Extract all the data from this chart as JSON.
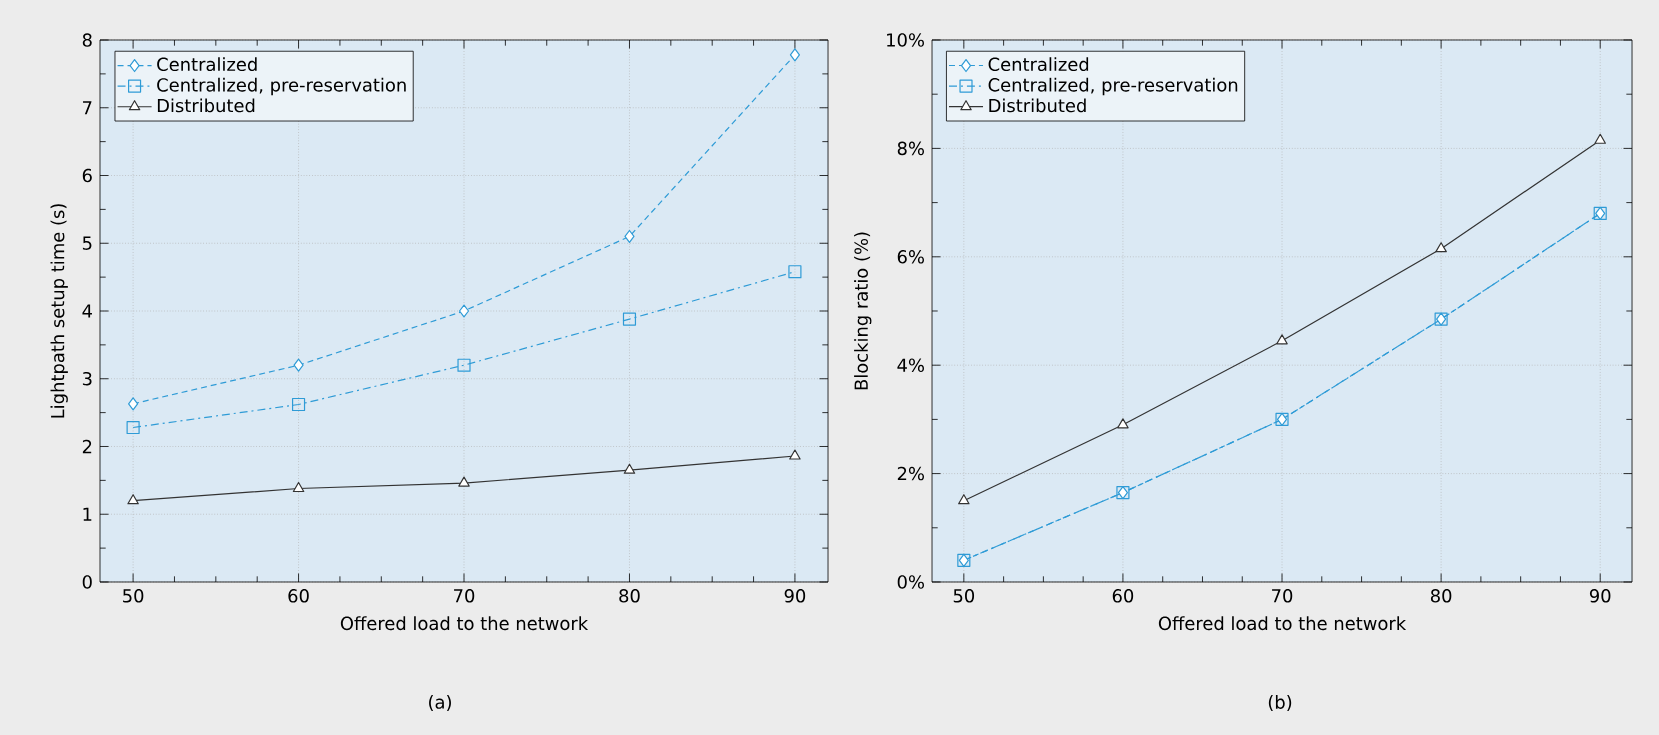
{
  "chart_data": [
    {
      "type": "line",
      "xlabel": "Offered load to the network",
      "ylabel": "Lightpath setup time (s)",
      "annotations": [
        "(a)"
      ],
      "x": [
        50,
        60,
        70,
        80,
        90
      ],
      "xlim": [
        48,
        92
      ],
      "xticks": [
        50,
        60,
        70,
        80,
        90
      ],
      "ylim": [
        0,
        8
      ],
      "yticks": [
        0,
        1,
        2,
        3,
        4,
        5,
        6,
        7,
        8
      ],
      "grid": true,
      "legend": "top left",
      "series": [
        {
          "name": "Centralized",
          "color": "#2e9bd6",
          "marker": "diamond",
          "line_style": "dashed",
          "values": [
            2.63,
            3.2,
            4.0,
            5.1,
            7.78
          ]
        },
        {
          "name": "Centralized, pre-reservation",
          "color": "#2e9bd6",
          "marker": "square",
          "line_style": "dashdot",
          "values": [
            2.28,
            2.62,
            3.2,
            3.88,
            4.58
          ]
        },
        {
          "name": "Distributed",
          "color": "#333333",
          "marker": "triangle",
          "line_style": "solid",
          "values": [
            1.2,
            1.38,
            1.46,
            1.65,
            1.86
          ]
        }
      ]
    },
    {
      "type": "line",
      "xlabel": "Offered load to the network",
      "ylabel": "Blocking ratio (%)",
      "annotations": [
        "(b)"
      ],
      "x": [
        50,
        60,
        70,
        80,
        90
      ],
      "xlim": [
        48,
        92
      ],
      "xticks": [
        50,
        60,
        70,
        80,
        90
      ],
      "ylim": [
        0,
        10
      ],
      "yticks": [
        {
          "value": 0,
          "label": "0%"
        },
        {
          "value": 2,
          "label": "2%"
        },
        {
          "value": 4,
          "label": "4%"
        },
        {
          "value": 6,
          "label": "6%"
        },
        {
          "value": 8,
          "label": "8%"
        },
        {
          "value": 10,
          "label": "10%"
        }
      ],
      "grid": true,
      "legend": "top left",
      "series": [
        {
          "name": "Centralized",
          "color": "#2e9bd6",
          "marker": "diamond",
          "line_style": "dashed",
          "values": [
            0.4,
            1.65,
            3.0,
            4.85,
            6.8
          ]
        },
        {
          "name": "Centralized, pre-reservation",
          "color": "#2e9bd6",
          "marker": "square",
          "line_style": "dashdot",
          "values": [
            0.4,
            1.65,
            3.0,
            4.85,
            6.8
          ]
        },
        {
          "name": "Distributed",
          "color": "#333333",
          "marker": "triangle",
          "line_style": "solid",
          "values": [
            1.5,
            2.9,
            4.45,
            6.15,
            8.15
          ]
        }
      ]
    }
  ]
}
